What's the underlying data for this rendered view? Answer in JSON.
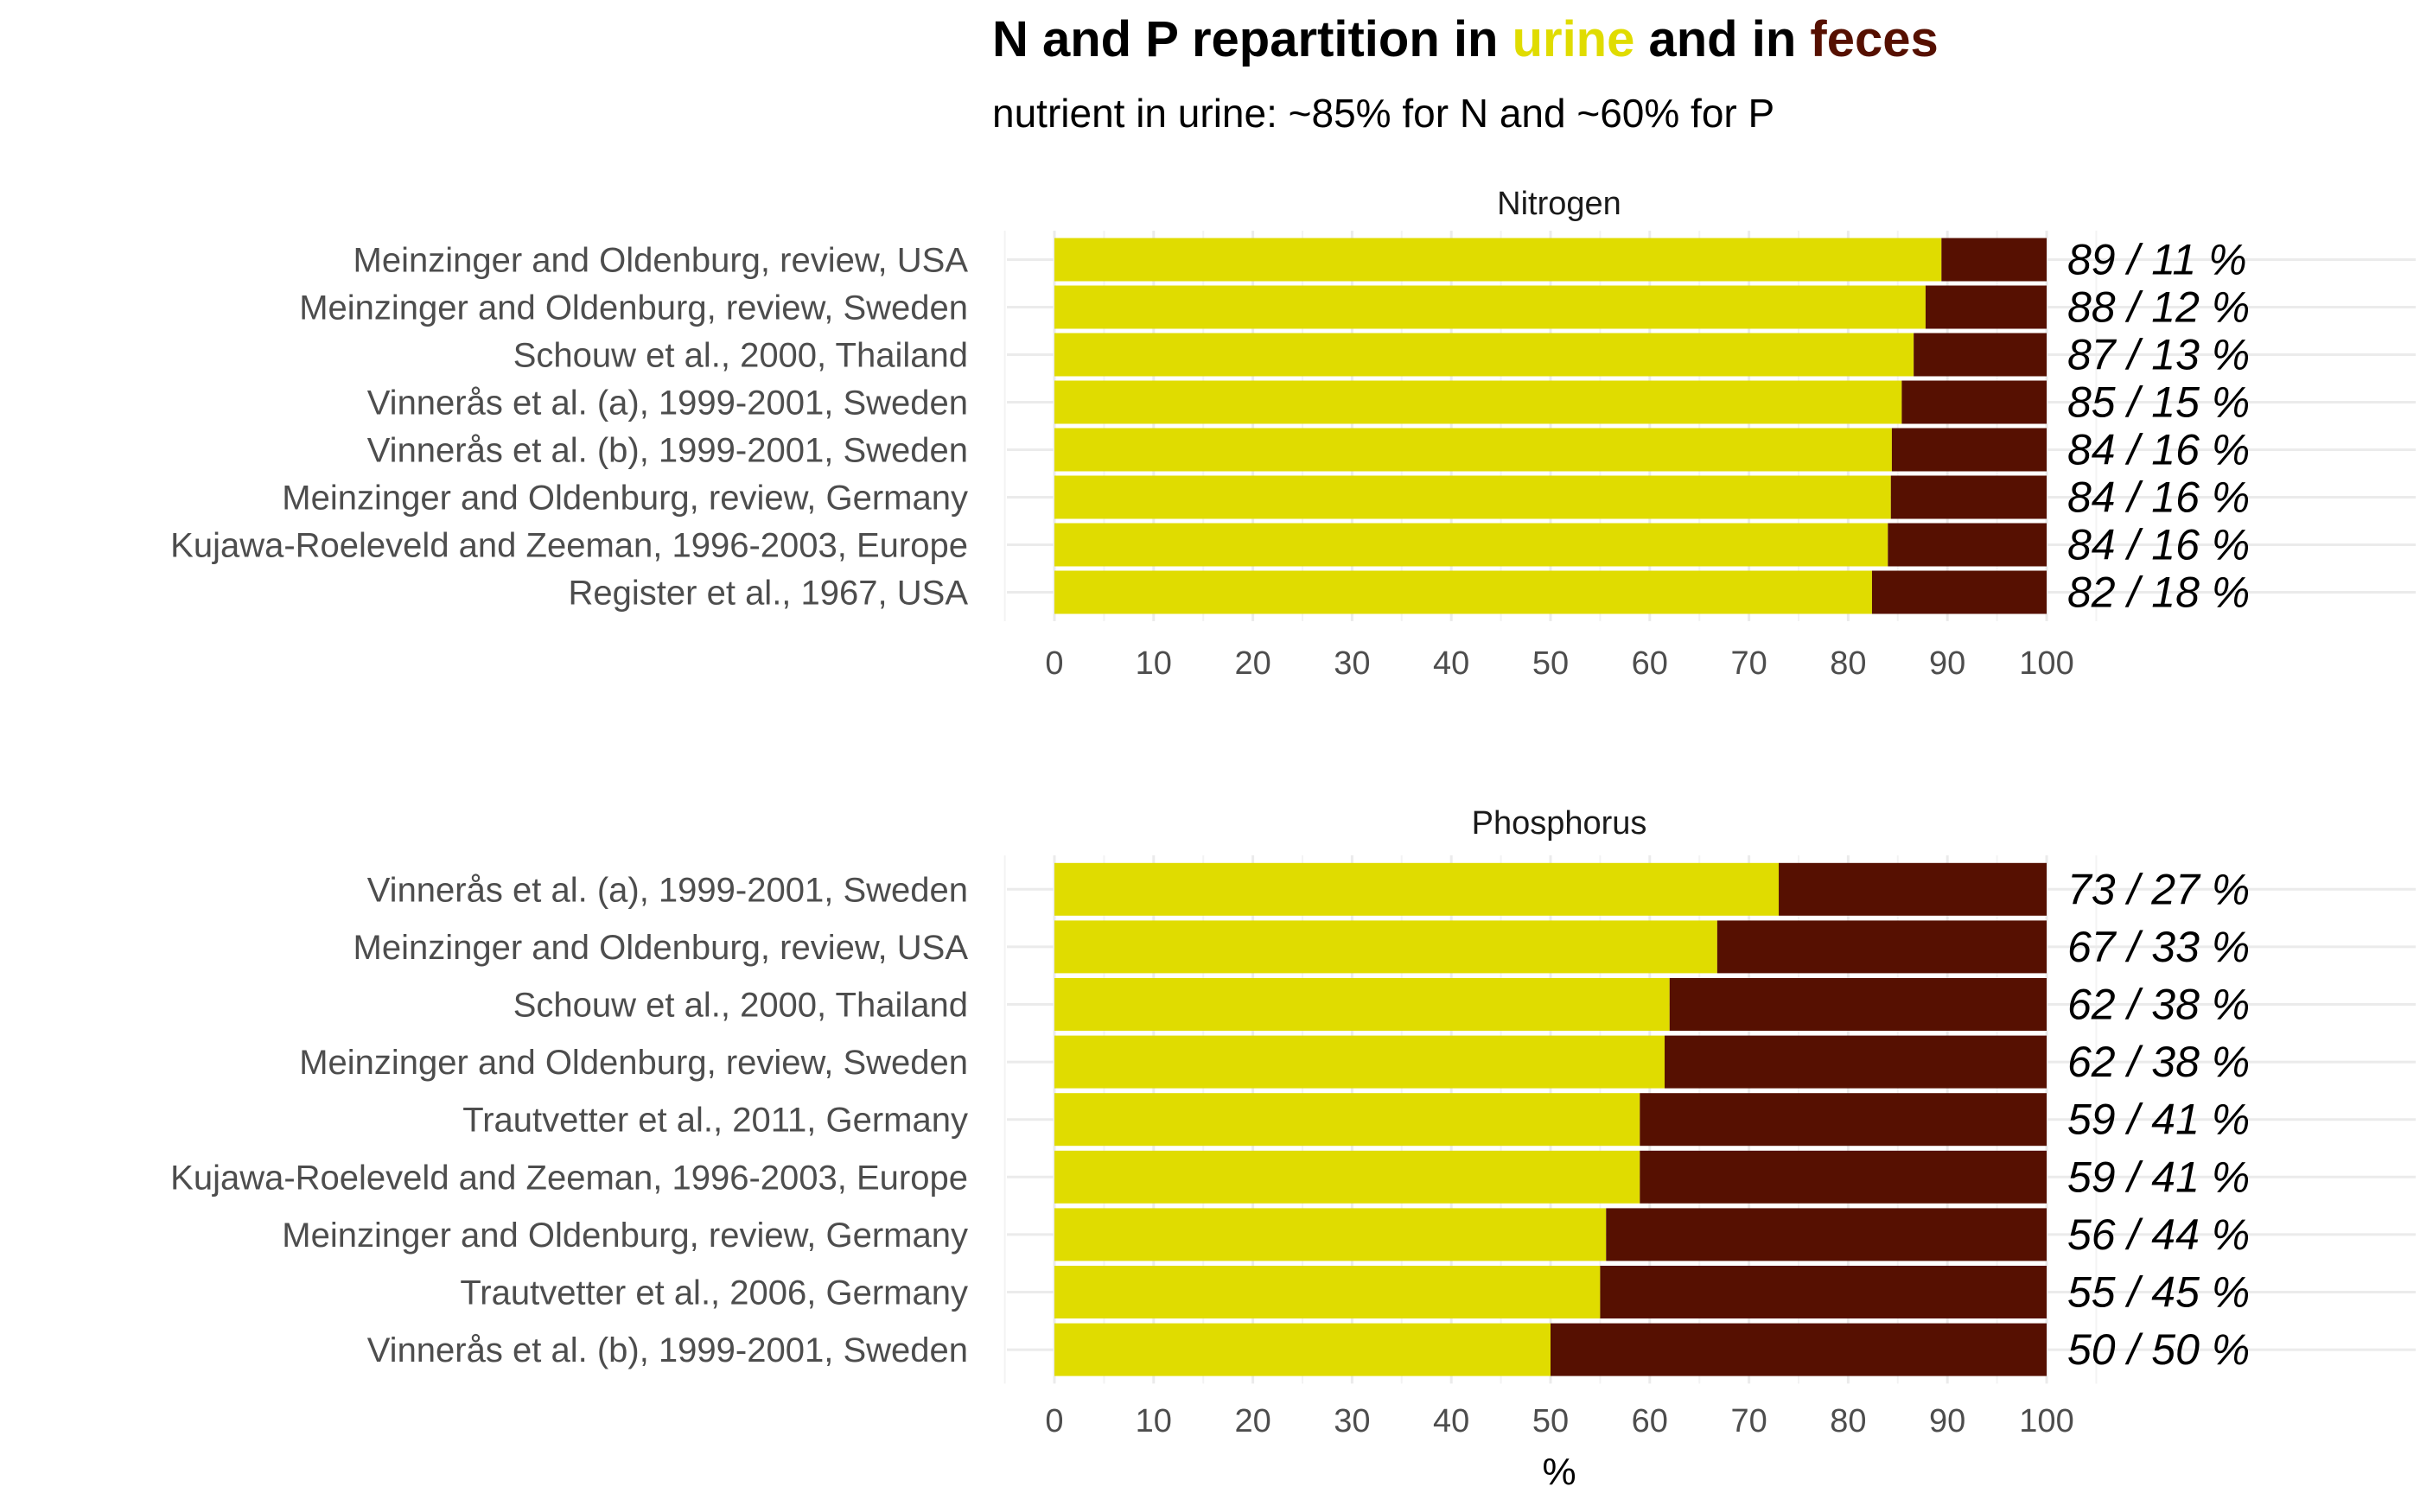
{
  "header": {
    "title_parts": [
      "N and P repartition in ",
      "urine",
      " and in ",
      "feces"
    ],
    "subtitle": "nutrient in urine: ~85% for N and ~60% for P"
  },
  "colors": {
    "urine": "#e0dc00",
    "feces": "#561001"
  },
  "chart_data": [
    {
      "type": "bar",
      "orientation": "horizontal",
      "stacked": true,
      "facet": "Nitrogen",
      "xlim": [
        0,
        100
      ],
      "xticks": [
        0,
        10,
        20,
        30,
        40,
        50,
        60,
        70,
        80,
        90,
        100
      ],
      "xlabel": "",
      "categories": [
        "Meinzinger and Oldenburg, review, USA",
        "Meinzinger and Oldenburg, review, Sweden",
        "Schouw et al., 2000, Thailand",
        "Vinnerås et al. (a), 1999-2001, Sweden",
        "Vinnerås et al. (b), 1999-2001, Sweden",
        "Meinzinger and Oldenburg, review, Germany",
        "Kujawa-Roeleveld and Zeeman, 1996-2003, Europe",
        "Register et al., 1967, USA"
      ],
      "series": [
        {
          "name": "urine",
          "values": [
            89.4,
            87.8,
            86.6,
            85.4,
            84.4,
            84.3,
            84.0,
            82.4
          ]
        },
        {
          "name": "feces",
          "values": [
            10.6,
            12.2,
            13.4,
            14.6,
            15.6,
            15.7,
            16.0,
            17.6
          ]
        }
      ],
      "value_labels": [
        "89 / 11 %",
        "88 / 12 %",
        "87 / 13 %",
        "85 / 15 %",
        "84 / 16 %",
        "84 / 16 %",
        "84 / 16 %",
        "82 / 18 %"
      ]
    },
    {
      "type": "bar",
      "orientation": "horizontal",
      "stacked": true,
      "facet": "Phosphorus",
      "xlim": [
        0,
        100
      ],
      "xticks": [
        0,
        10,
        20,
        30,
        40,
        50,
        60,
        70,
        80,
        90,
        100
      ],
      "xlabel": "%",
      "categories": [
        "Vinnerås et al. (a), 1999-2001, Sweden",
        "Meinzinger and Oldenburg, review, USA",
        "Schouw et al., 2000, Thailand",
        "Meinzinger and Oldenburg, review, Sweden",
        "Trautvetter et al., 2011, Germany",
        "Kujawa-Roeleveld and Zeeman, 1996-2003, Europe",
        "Meinzinger and Oldenburg, review, Germany",
        "Trautvetter et al., 2006, Germany",
        "Vinnerås et al. (b), 1999-2001, Sweden"
      ],
      "series": [
        {
          "name": "urine",
          "values": [
            73.0,
            66.8,
            62.0,
            61.5,
            59.0,
            59.0,
            55.6,
            55.0,
            50.0
          ]
        },
        {
          "name": "feces",
          "values": [
            27.0,
            33.2,
            38.0,
            38.5,
            41.0,
            41.0,
            44.4,
            45.0,
            50.0
          ]
        }
      ],
      "value_labels": [
        "73 / 27 %",
        "67 / 33 %",
        "62 / 38 %",
        "62 / 38 %",
        "59 / 41 %",
        "59 / 41 %",
        "56 / 44 %",
        "55 / 45 %",
        "50 / 50 %"
      ]
    }
  ]
}
